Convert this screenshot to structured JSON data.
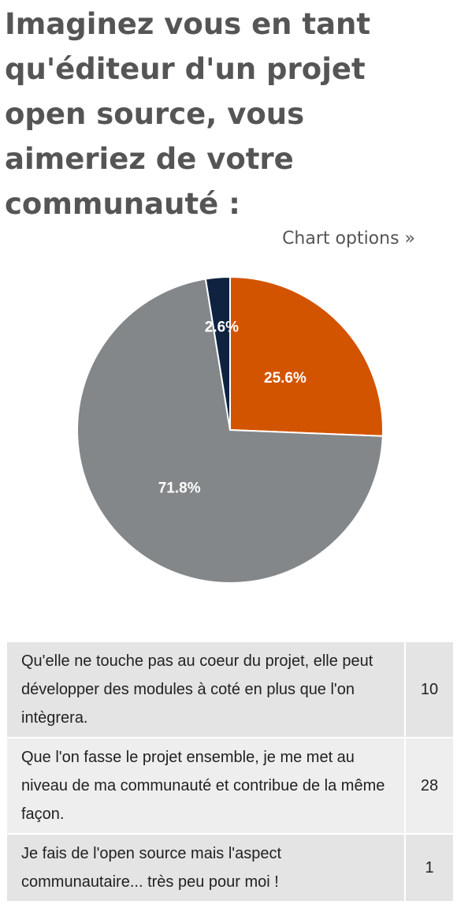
{
  "title": "Imaginez vous en tant qu'éditeur d'un projet open source, vous aimeriez de votre communauté :",
  "chart_options_label": "Chart options »",
  "chart_data": {
    "type": "pie",
    "start_angle_deg": 0,
    "direction": "clockwise",
    "slices": [
      {
        "label": "Qu'elle ne touche pas au coeur du projet, elle peut développer des modules à coté en plus que l'on intègrera.",
        "value": 10,
        "percent_label": "25.6%",
        "color": "#d35400"
      },
      {
        "label": "Que l'on fasse le projet ensemble, je me met au niveau de ma communauté et contribue de la même façon.",
        "value": 28,
        "percent_label": "71.8%",
        "color": "#848789"
      },
      {
        "label": "Je fais de l'open source mais l'aspect communautaire... très peu pour moi !",
        "value": 1,
        "percent_label": "2.6%",
        "color": "#0f2340"
      }
    ]
  },
  "table": {
    "rows": [
      {
        "label": "Qu'elle ne touche pas au coeur du projet, elle peut développer des modules à coté en plus que l'on intègrera.",
        "count": "10"
      },
      {
        "label": "Que l'on fasse le projet ensemble, je me met au niveau de ma communauté et contribue de la même façon.",
        "count": "28"
      },
      {
        "label": "Je fais de l'open source mais l'aspect communautaire... très peu pour moi !",
        "count": "1"
      }
    ]
  }
}
